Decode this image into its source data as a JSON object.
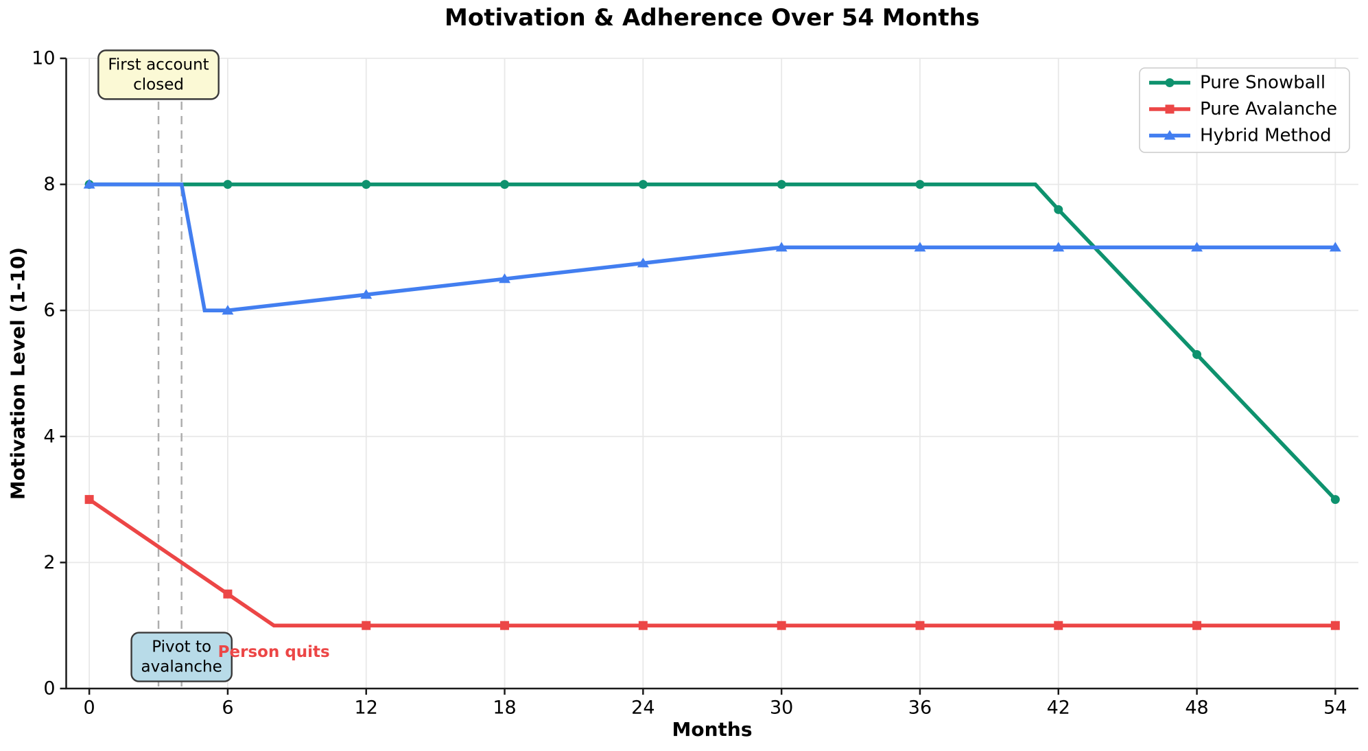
{
  "chart_data": {
    "type": "line",
    "title": "Motivation & Adherence Over 54 Months",
    "xlabel": "Months",
    "ylabel": "Motivation Level (1-10)",
    "xlim": [
      -1,
      55
    ],
    "ylim": [
      0,
      10
    ],
    "x_ticks": [
      0,
      6,
      12,
      18,
      24,
      30,
      36,
      42,
      48,
      54
    ],
    "y_ticks": [
      0,
      2,
      4,
      6,
      8,
      10
    ],
    "grid": true,
    "grid_color": "#E8E8E8",
    "spine_color": "#1A1A1A",
    "legend_position": "upper right",
    "series": [
      {
        "name": "Pure Snowball",
        "color": "#0E926E",
        "marker": "circle",
        "points": [
          [
            0,
            8
          ],
          [
            6,
            8
          ],
          [
            12,
            8
          ],
          [
            18,
            8
          ],
          [
            24,
            8
          ],
          [
            30,
            8
          ],
          [
            36,
            8
          ],
          [
            41,
            8
          ],
          [
            42,
            7.6
          ],
          [
            48,
            5.3
          ],
          [
            54,
            3
          ]
        ],
        "markers": [
          [
            0,
            8
          ],
          [
            6,
            8
          ],
          [
            12,
            8
          ],
          [
            18,
            8
          ],
          [
            24,
            8
          ],
          [
            30,
            8
          ],
          [
            36,
            8
          ],
          [
            42,
            7.6
          ],
          [
            48,
            5.3
          ],
          [
            54,
            3
          ]
        ]
      },
      {
        "name": "Pure Avalanche",
        "color": "#EC4646",
        "marker": "square",
        "points": [
          [
            0,
            3
          ],
          [
            6,
            1.5
          ],
          [
            8,
            1
          ],
          [
            12,
            1
          ],
          [
            18,
            1
          ],
          [
            24,
            1
          ],
          [
            30,
            1
          ],
          [
            36,
            1
          ],
          [
            42,
            1
          ],
          [
            48,
            1
          ],
          [
            54,
            1
          ]
        ],
        "markers": [
          [
            0,
            3
          ],
          [
            6,
            1.5
          ],
          [
            12,
            1
          ],
          [
            18,
            1
          ],
          [
            24,
            1
          ],
          [
            30,
            1
          ],
          [
            36,
            1
          ],
          [
            42,
            1
          ],
          [
            48,
            1
          ],
          [
            54,
            1
          ]
        ]
      },
      {
        "name": "Hybrid Method",
        "color": "#427EF0",
        "marker": "triangle",
        "points": [
          [
            0,
            8
          ],
          [
            4,
            8
          ],
          [
            5,
            6
          ],
          [
            6,
            6
          ],
          [
            12,
            6.25
          ],
          [
            18,
            6.5
          ],
          [
            24,
            6.75
          ],
          [
            30,
            7
          ],
          [
            36,
            7
          ],
          [
            42,
            7
          ],
          [
            48,
            7
          ],
          [
            54,
            7
          ]
        ],
        "markers": [
          [
            0,
            8
          ],
          [
            6,
            6
          ],
          [
            12,
            6.25
          ],
          [
            18,
            6.5
          ],
          [
            24,
            6.75
          ],
          [
            30,
            7
          ],
          [
            36,
            7
          ],
          [
            42,
            7
          ],
          [
            48,
            7
          ],
          [
            54,
            7
          ]
        ]
      }
    ],
    "vlines": [
      {
        "x": 3,
        "color": "#ADADAD",
        "style": "dashed"
      },
      {
        "x": 4,
        "color": "#ADADAD",
        "style": "dashed"
      }
    ],
    "annotations": [
      {
        "id": "first-account-closed",
        "lines": [
          "First account",
          "closed"
        ],
        "x": 3,
        "y": 9.74,
        "bg": "#FBF9D5",
        "border": "#3A3A3A",
        "text_color": "#000000",
        "bold": false
      },
      {
        "id": "pivot-to-avalanche",
        "lines": [
          "Pivot to",
          "avalanche"
        ],
        "x": 4,
        "y": 0.5,
        "bg": "#B8DBE8",
        "border": "#3A3A3A",
        "text_color": "#000000",
        "bold": false
      },
      {
        "id": "person-quits",
        "lines": [
          "Person quits"
        ],
        "x": 8,
        "y": 0.58,
        "text_color": "#EC4646",
        "bold": true
      }
    ]
  }
}
